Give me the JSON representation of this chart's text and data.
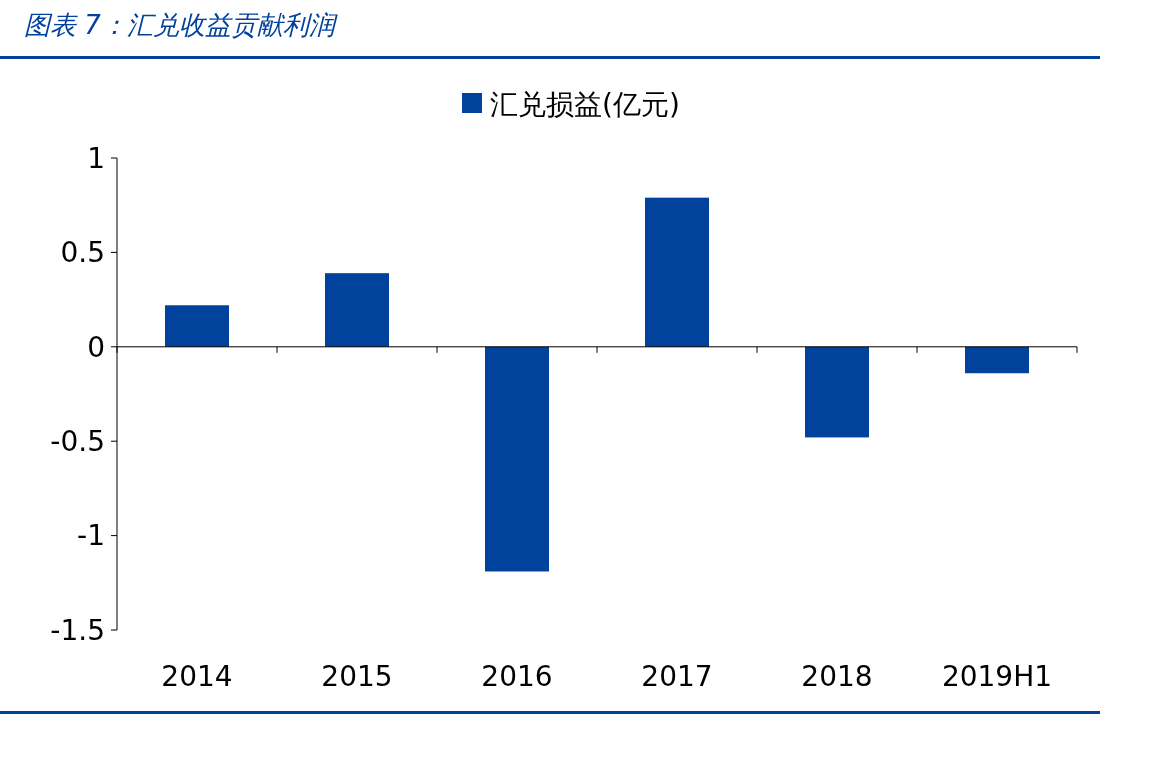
{
  "chart_data": {
    "type": "bar",
    "title": "图表 7：汇兑收益贡献利润",
    "categories": [
      "2014",
      "2015",
      "2016",
      "2017",
      "2018",
      "2019H1"
    ],
    "series": [
      {
        "name": "汇兑损益(亿元)",
        "color": "#00429c",
        "values": [
          0.22,
          0.39,
          -1.19,
          0.79,
          -0.48,
          -0.14
        ]
      }
    ],
    "ylim": [
      -1.5,
      1
    ],
    "yticks": [
      -1.5,
      -1,
      -0.5,
      0,
      0.5,
      1
    ],
    "legend": "top"
  }
}
